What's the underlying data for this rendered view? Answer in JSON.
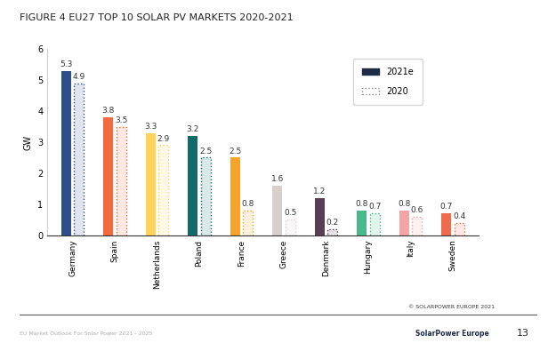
{
  "chart_data": {
    "type": "bar",
    "title": "FIGURE 4 EU27 TOP 10 SOLAR PV MARKETS 2020-2021",
    "y_label": "GW",
    "categories": [
      "Germany",
      "Spain",
      "Netherlands",
      "Poland",
      "France",
      "Greece",
      "Denmark",
      "Hungary",
      "Italy",
      "Sweden"
    ],
    "series": [
      {
        "name": "2021e",
        "color": "#1f2a44",
        "colors": [
          "#2e4e8a",
          "#f26a3d",
          "#ffd35a",
          "#126b6b",
          "#f7a228",
          "#d8cfcc",
          "#5a3d55",
          "#47b98a",
          "#f4a3a6",
          "#ee6c4d"
        ],
        "values": [
          5.3,
          3.8,
          3.3,
          3.2,
          2.5,
          1.6,
          1.2,
          0.8,
          0.8,
          0.7
        ]
      },
      {
        "name": "2020",
        "color": "#8a8a8a",
        "line_style": "dotted",
        "colors": [
          "#2e4e8a",
          "#f26a3d",
          "#ffd35a",
          "#126b6b",
          "#f7a228",
          "#d8cfcc",
          "#5a3d55",
          "#47b98a",
          "#f4a3a6",
          "#ee6c4d"
        ],
        "values": [
          4.9,
          3.5,
          2.9,
          2.5,
          0.8,
          0.5,
          0.2,
          0.7,
          0.6,
          0.4
        ]
      }
    ],
    "ylim": [
      0,
      6
    ],
    "yticks": [
      0,
      1,
      2,
      3,
      4,
      5,
      6
    ],
    "grid": false,
    "legend": "upper right",
    "data_labels": true,
    "annotations": [
      "© SOLARPOWER EUROPE 2021",
      "EU Market Outlook For Solar Power 2021 - 2025",
      "13",
      "SolarPower Europe"
    ]
  }
}
